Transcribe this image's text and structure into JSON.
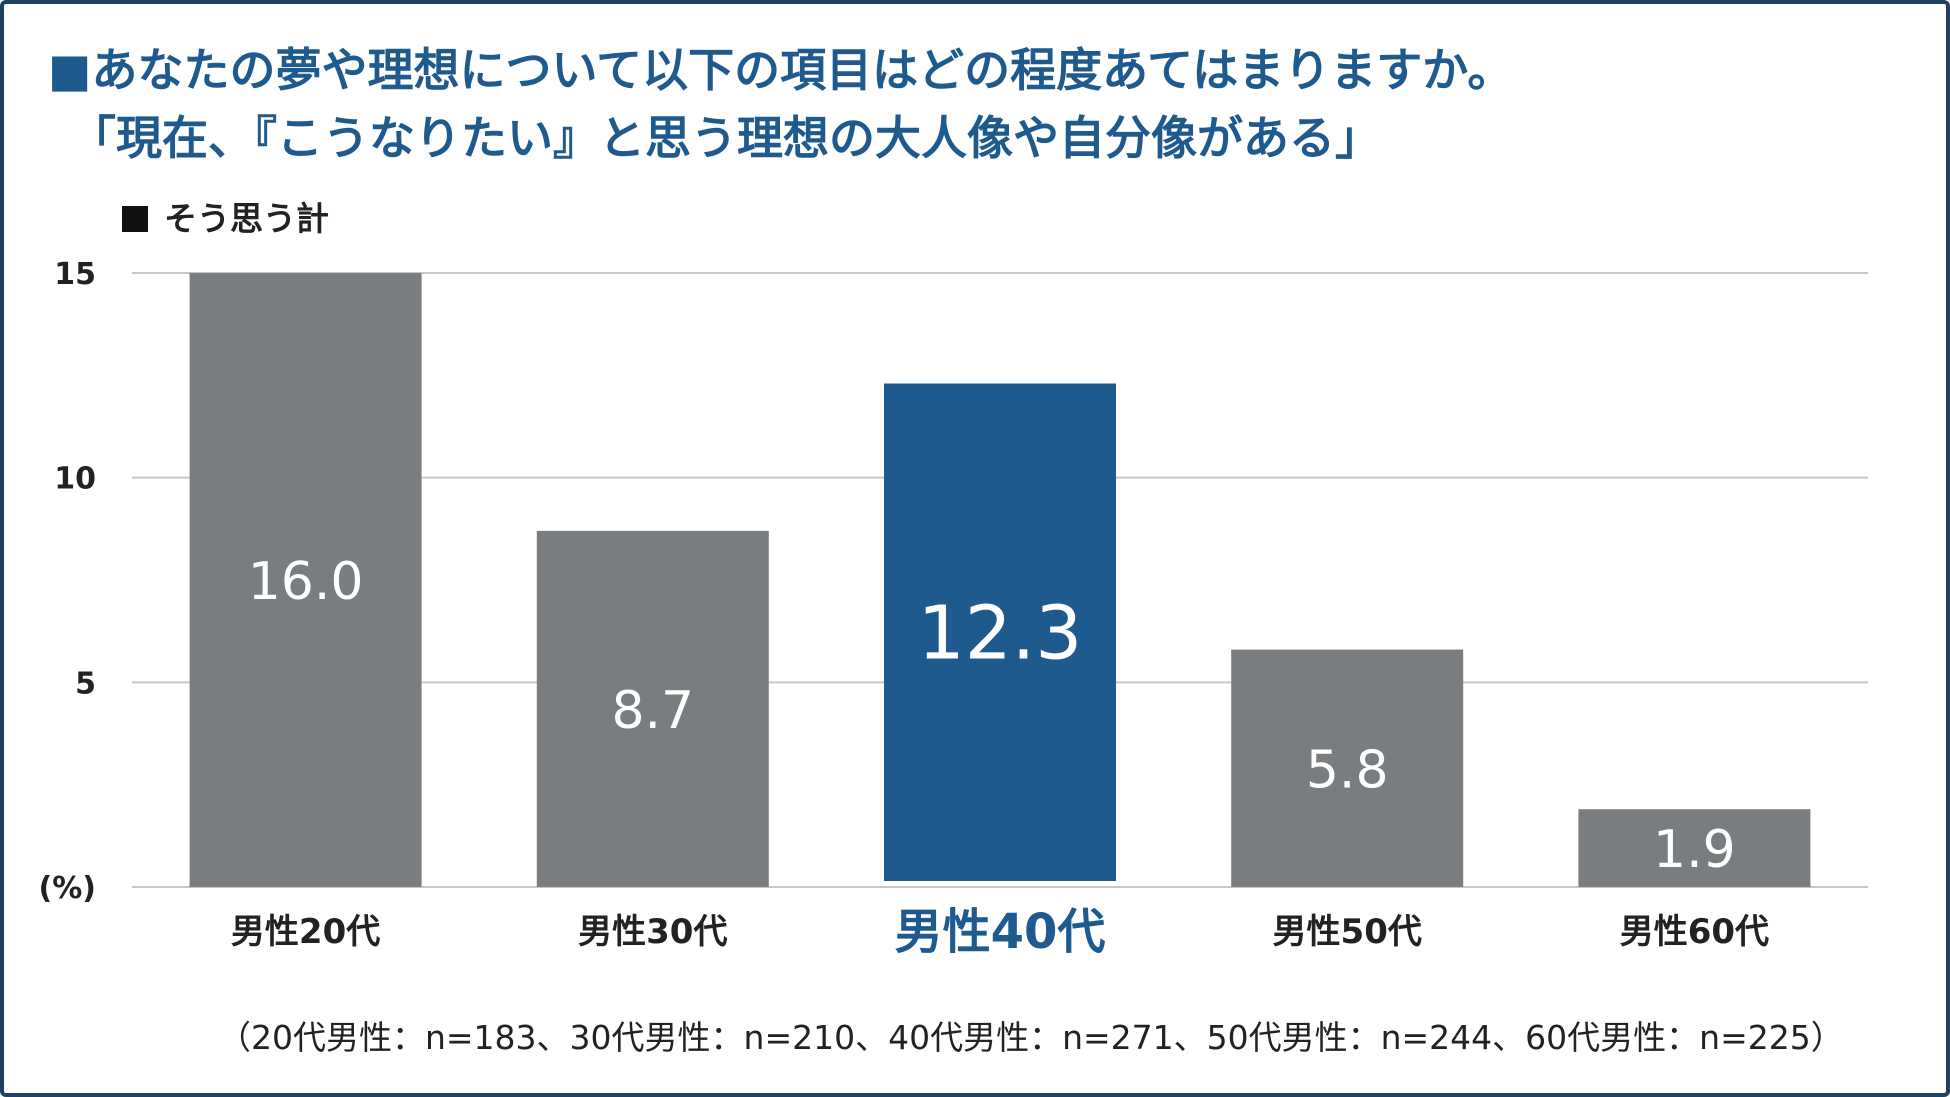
{
  "title": "■あなたの夢や理想について以下の項目はどの程度あてはまりますか。",
  "subtitle": "「現在、『こうなりたい』と思う理想の大人像や自分像がある」",
  "legend_label": "そう思う計",
  "unit_label": "(%)",
  "note": "（20代男性：n=183、30代男性：n=210、40代男性：n=271、50代男性：n=244、60代男性：n=225）",
  "colors": {
    "bar": "#7a7d80",
    "highlight": "#1f5a8f",
    "grid": "#c8c8c8",
    "frame": "#1f3f63"
  },
  "chart_data": {
    "type": "bar",
    "title": "■あなたの夢や理想について以下の項目はどの程度あてはまりますか。",
    "subtitle": "「現在、『こうなりたい』と思う理想の大人像や自分像がある」",
    "categories": [
      "男性20代",
      "男性30代",
      "男性40代",
      "男性50代",
      "男性60代"
    ],
    "series": [
      {
        "name": "そう思う計",
        "values": [
          16.0,
          8.7,
          12.3,
          5.8,
          1.9
        ]
      }
    ],
    "value_labels": [
      "16.0",
      "8.7",
      "12.3",
      "5.8",
      "1.9"
    ],
    "highlight_index": 2,
    "ylim": [
      0,
      15
    ],
    "yticks": [
      15,
      10,
      5
    ],
    "ylabel": "(%)",
    "grid": true,
    "legend": "top-left"
  }
}
